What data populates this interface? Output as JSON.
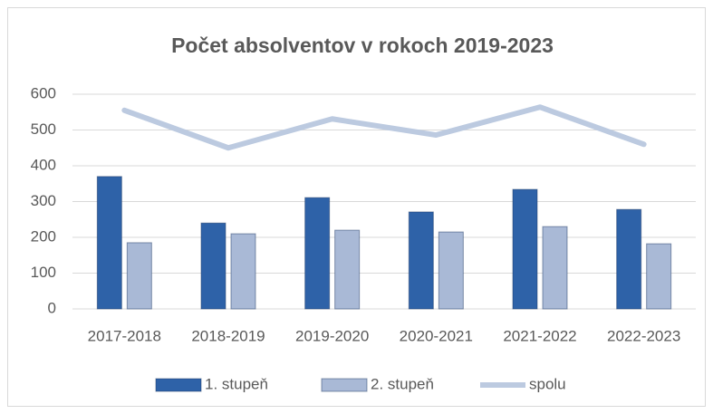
{
  "chart_data": {
    "type": "bar",
    "title": "Počet absolventov v rokoch 2019-2023",
    "categories": [
      "2017-2018",
      "2018-2019",
      "2019-2020",
      "2020-2021",
      "2021-2022",
      "2022-2023"
    ],
    "series": [
      {
        "name": "1. stupeň",
        "type": "bar",
        "color": "#2e62a8",
        "values": [
          370,
          240,
          311,
          271,
          334,
          278
        ]
      },
      {
        "name": "2. stupeň",
        "type": "bar",
        "color": "#a9b9d6",
        "values": [
          185,
          210,
          220,
          215,
          230,
          182
        ]
      },
      {
        "name": "spolu",
        "type": "line",
        "color": "#bccae0",
        "values": [
          555,
          450,
          531,
          486,
          564,
          460
        ]
      }
    ],
    "ylim": [
      0,
      600
    ],
    "yticks": [
      0,
      100,
      200,
      300,
      400,
      500,
      600
    ],
    "grid": true,
    "legend": "bottom"
  }
}
